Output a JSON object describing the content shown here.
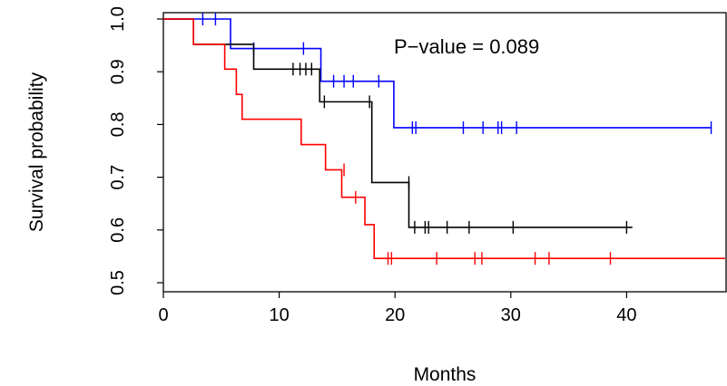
{
  "chart_data": {
    "type": "line",
    "title": "",
    "xlabel": "Months",
    "ylabel": "Survival probability",
    "xlim": [
      0,
      48.5
    ],
    "ylim": [
      0.5,
      1.0
    ],
    "x_ticks": [
      "0",
      "10",
      "20",
      "30",
      "40"
    ],
    "x_tick_values": [
      0,
      10,
      20,
      30,
      40
    ],
    "y_ticks": [
      "0.5",
      "0.6",
      "0.7",
      "0.8",
      "0.9",
      "1.0"
    ],
    "y_tick_values": [
      0.5,
      0.6,
      0.7,
      0.8,
      0.9,
      1.0
    ],
    "annotation": "P−value = 0.089",
    "grid": false,
    "legend": "none",
    "series": [
      {
        "color": "#0000ff",
        "steps": [
          [
            0,
            1.0
          ],
          [
            5.8,
            0.944
          ],
          [
            13.6,
            0.882
          ],
          [
            19.9,
            0.794
          ],
          [
            47.3,
            0.794
          ]
        ],
        "censored": [
          [
            3.4,
            1.0
          ],
          [
            4.5,
            1.0
          ],
          [
            7.8,
            0.944
          ],
          [
            12.1,
            0.944
          ],
          [
            14.7,
            0.882
          ],
          [
            15.6,
            0.882
          ],
          [
            16.4,
            0.882
          ],
          [
            18.6,
            0.882
          ],
          [
            21.5,
            0.794
          ],
          [
            21.8,
            0.794
          ],
          [
            25.9,
            0.794
          ],
          [
            27.6,
            0.794
          ],
          [
            28.9,
            0.794
          ],
          [
            29.2,
            0.794
          ],
          [
            30.5,
            0.794
          ],
          [
            47.3,
            0.794
          ]
        ]
      },
      {
        "color": "#000000",
        "steps": [
          [
            0,
            1.0
          ],
          [
            2.6,
            0.952
          ],
          [
            7.8,
            0.905
          ],
          [
            13.5,
            0.843
          ],
          [
            18.0,
            0.69
          ],
          [
            21.2,
            0.605
          ],
          [
            40.5,
            0.605
          ]
        ],
        "censored": [
          [
            11.2,
            0.905
          ],
          [
            11.8,
            0.905
          ],
          [
            12.3,
            0.905
          ],
          [
            12.8,
            0.905
          ],
          [
            13.9,
            0.843
          ],
          [
            17.8,
            0.843
          ],
          [
            21.2,
            0.69
          ],
          [
            21.7,
            0.605
          ],
          [
            22.6,
            0.605
          ],
          [
            22.9,
            0.605
          ],
          [
            24.5,
            0.605
          ],
          [
            26.4,
            0.605
          ],
          [
            30.2,
            0.605
          ],
          [
            40.0,
            0.605
          ]
        ]
      },
      {
        "color": "#ff0000",
        "steps": [
          [
            0,
            1.0
          ],
          [
            2.6,
            0.952
          ],
          [
            5.3,
            0.905
          ],
          [
            6.3,
            0.857
          ],
          [
            6.8,
            0.81
          ],
          [
            11.9,
            0.762
          ],
          [
            12.3,
            0.762
          ],
          [
            14.0,
            0.714
          ],
          [
            15.4,
            0.662
          ],
          [
            17.4,
            0.61
          ],
          [
            18.2,
            0.546
          ],
          [
            48.5,
            0.546
          ]
        ],
        "censored": [
          [
            15.6,
            0.714
          ],
          [
            16.6,
            0.662
          ],
          [
            19.4,
            0.546
          ],
          [
            19.7,
            0.546
          ],
          [
            23.6,
            0.546
          ],
          [
            26.9,
            0.546
          ],
          [
            27.5,
            0.546
          ],
          [
            32.1,
            0.546
          ],
          [
            33.3,
            0.546
          ],
          [
            38.6,
            0.546
          ]
        ]
      }
    ]
  }
}
